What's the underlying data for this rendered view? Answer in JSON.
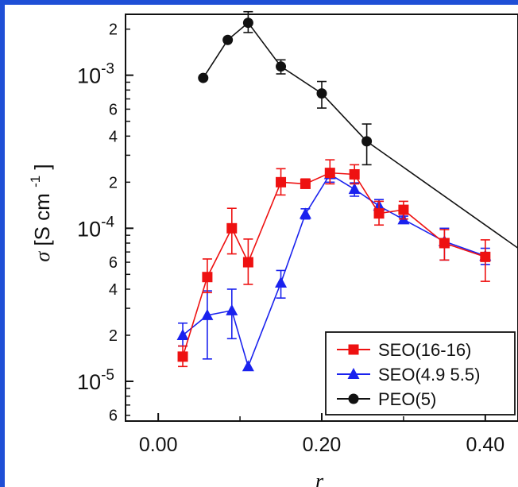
{
  "chart_data": {
    "type": "scatter",
    "title": "",
    "xlabel": "r",
    "ylabel": "σ [S cm",
    "ylabel_superscript": "-1",
    "ylabel_close": "]",
    "xlim": [
      -0.04,
      0.44
    ],
    "ylim": [
      5.5e-06,
      0.0025
    ],
    "yscale": "log",
    "grid": false,
    "legend_position": "bottom-right",
    "x_ticks": [
      {
        "value": 0.0,
        "label": "0.00"
      },
      {
        "value": 0.2,
        "label": "0.20"
      },
      {
        "value": 0.4,
        "label": "0.40"
      }
    ],
    "y_major_ticks": [
      {
        "value": 1e-05,
        "label": "10",
        "exp": "-5"
      },
      {
        "value": 0.0001,
        "label": "10",
        "exp": "-4"
      },
      {
        "value": 0.001,
        "label": "10",
        "exp": "-3"
      }
    ],
    "y_minor_labels": [
      {
        "value": 6e-06,
        "label": "6"
      },
      {
        "value": 2e-05,
        "label": "2"
      },
      {
        "value": 4e-05,
        "label": "4"
      },
      {
        "value": 6e-05,
        "label": "6"
      },
      {
        "value": 0.0002,
        "label": "2"
      },
      {
        "value": 0.0004,
        "label": "4"
      },
      {
        "value": 0.0006,
        "label": "6"
      },
      {
        "value": 0.002,
        "label": "2"
      }
    ],
    "series": [
      {
        "name": "SEO(16-16)",
        "color": "#ee1111",
        "marker": "square",
        "x": [
          0.03,
          0.06,
          0.09,
          0.11,
          0.15,
          0.18,
          0.21,
          0.24,
          0.27,
          0.3,
          0.35,
          0.4
        ],
        "y": [
          1.45e-05,
          4.8e-05,
          0.0001,
          6e-05,
          0.0002,
          0.000195,
          0.00023,
          0.000225,
          0.000125,
          0.000132,
          8e-05,
          6.5e-05
        ],
        "err_low": [
          1.25e-05,
          3.8e-05,
          6.8e-05,
          4.3e-05,
          0.000165,
          0.000185,
          0.000195,
          0.000195,
          0.000105,
          0.000115,
          6.2e-05,
          4.5e-05
        ],
        "err_high": [
          1.7e-05,
          6.3e-05,
          0.000135,
          8.5e-05,
          0.000245,
          0.00021,
          0.00028,
          0.00026,
          0.00015,
          0.00015,
          9.8e-05,
          8.4e-05
        ]
      },
      {
        "name": "SEO(4.9 5.5)",
        "color": "#1a22ee",
        "marker": "triangle",
        "x": [
          0.03,
          0.06,
          0.09,
          0.11,
          0.15,
          0.18,
          0.21,
          0.24,
          0.27,
          0.3,
          0.35,
          0.4
        ],
        "y": [
          2e-05,
          2.7e-05,
          2.9e-05,
          1.25e-05,
          4.4e-05,
          0.000124,
          0.000225,
          0.00018,
          0.00014,
          0.000114,
          8.2e-05,
          6.6e-05
        ],
        "err_low": [
          1.7e-05,
          1.4e-05,
          1.9e-05,
          1.25e-05,
          3.5e-05,
          0.000115,
          0.0002,
          0.000162,
          0.000118,
          0.000108,
          6.2e-05,
          5.8e-05
        ],
        "err_high": [
          2.4e-05,
          3.9e-05,
          4e-05,
          1.25e-05,
          5.3e-05,
          0.000134,
          0.000245,
          0.000198,
          0.000154,
          0.00012,
          0.0001,
          7.4e-05
        ]
      },
      {
        "name": "PEO(5)",
        "color": "#111111",
        "marker": "circle",
        "x": [
          0.055,
          0.085,
          0.11,
          0.15,
          0.2,
          0.255,
          0.45
        ],
        "y": [
          0.00096,
          0.0017,
          0.0022,
          0.00114,
          0.00076,
          0.00037,
          6.8e-05
        ],
        "err_low": [
          0.00096,
          0.0017,
          0.0019,
          0.00102,
          0.00061,
          0.00026,
          4.6e-05
        ],
        "err_high": [
          0.00096,
          0.0017,
          0.0026,
          0.00126,
          0.00091,
          0.00048,
          9.2e-05
        ]
      }
    ]
  }
}
